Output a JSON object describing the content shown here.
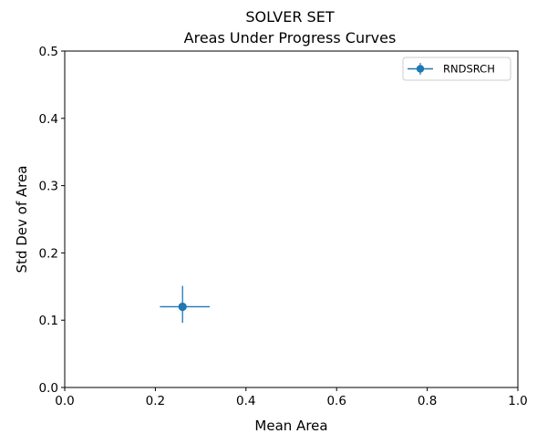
{
  "chart_data": {
    "type": "scatter",
    "title": "SOLVER SET",
    "subtitle": "Areas Under Progress Curves",
    "xlabel": "Mean Area",
    "ylabel": "Std Dev of Area",
    "xlim": [
      0,
      1
    ],
    "ylim": [
      0,
      0.5
    ],
    "xticks": [
      "0.0",
      "0.2",
      "0.4",
      "0.6",
      "0.8",
      "1.0"
    ],
    "yticks": [
      "0.0",
      "0.1",
      "0.2",
      "0.3",
      "0.4",
      "0.5"
    ],
    "grid": false,
    "legend_position": "top-right",
    "series": [
      {
        "name": "RNDSRCH",
        "color": "#1f77b4",
        "marker": "circle",
        "points": [
          {
            "x": 0.26,
            "y": 0.12,
            "x_err": [
              0.21,
              0.32
            ],
            "y_err": [
              0.096,
              0.151
            ]
          }
        ]
      }
    ]
  }
}
